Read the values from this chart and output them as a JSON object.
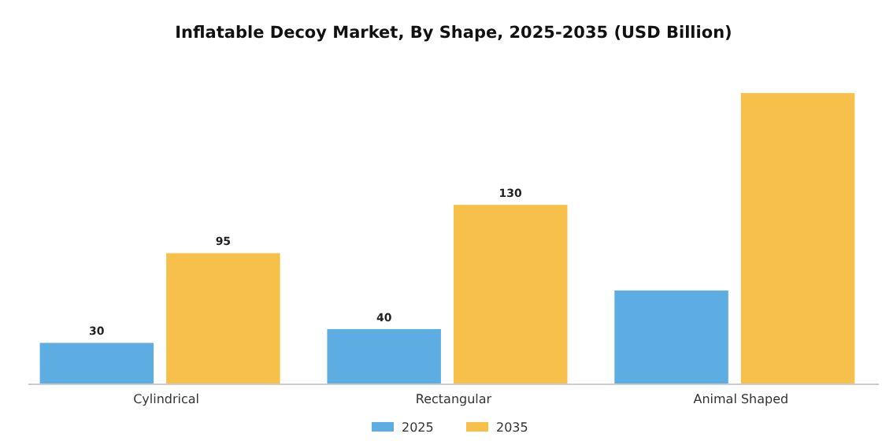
{
  "chart_data": {
    "type": "bar",
    "title": "Inflatable Decoy Market, By Shape, 2025-2035 (USD Billion)",
    "categories": [
      "Cylindrical",
      "Rectangular",
      "Animal Shaped"
    ],
    "series": [
      {
        "name": "2025",
        "color": "#5dade2",
        "values": [
          30,
          40,
          68
        ],
        "value_labels": [
          "30",
          "40",
          null
        ]
      },
      {
        "name": "2035",
        "color": "#f7c04a",
        "values": [
          95,
          130,
          211
        ],
        "value_labels": [
          "95",
          "130",
          null
        ]
      }
    ],
    "legend": "bottom"
  }
}
